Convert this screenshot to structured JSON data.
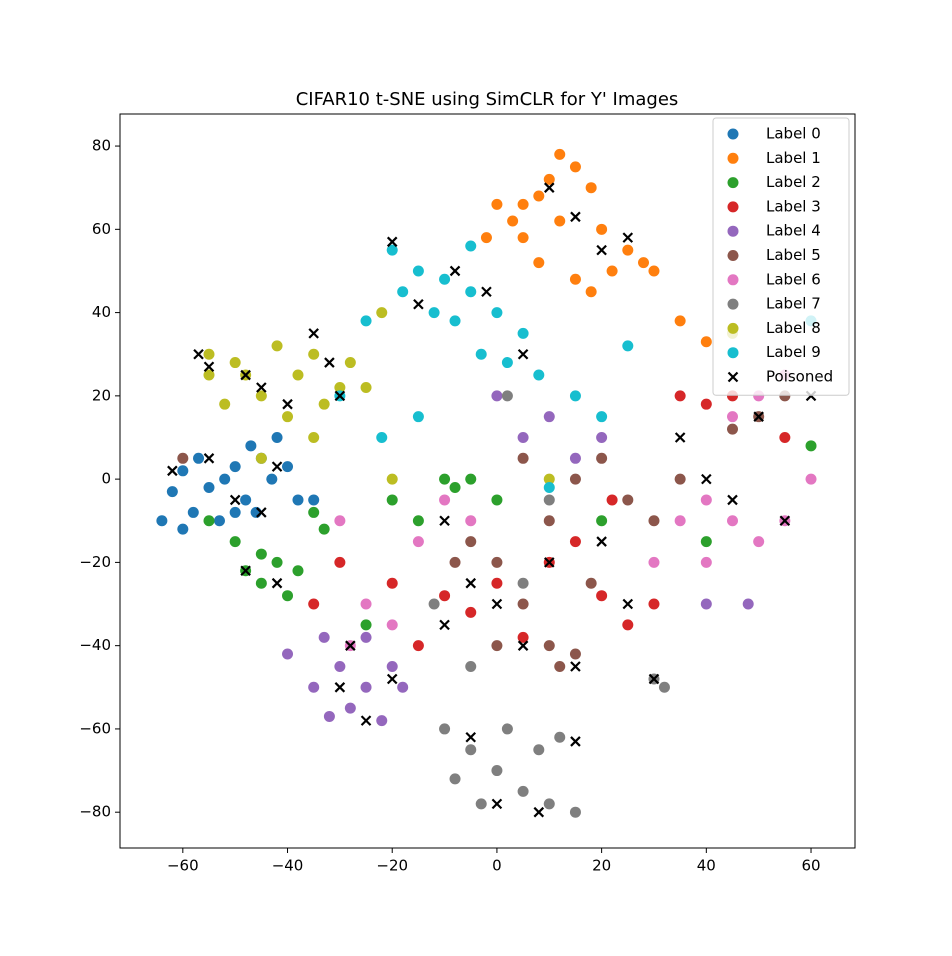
{
  "chart_data": {
    "type": "scatter",
    "title": "CIFAR10 t-SNE using SimCLR for Y' Images",
    "xlim": [
      -72,
      68.4
    ],
    "ylim": [
      -88.6,
      87.7
    ],
    "xticks": [
      {
        "value": -60,
        "label": "−60"
      },
      {
        "value": -40,
        "label": "−40"
      },
      {
        "value": -20,
        "label": "−20"
      },
      0,
      20,
      40,
      60
    ],
    "yticks": [
      {
        "value": -80,
        "label": "−80"
      },
      {
        "value": -60,
        "label": "−60"
      },
      {
        "value": -40,
        "label": "−40"
      },
      {
        "value": -20,
        "label": "−20"
      },
      0,
      20,
      40,
      60,
      80
    ],
    "legend": "upper right",
    "series": [
      {
        "name": "Label 0",
        "color": "#1f77b4",
        "x": [
          -62,
          -60,
          -57,
          -55,
          -52,
          -50,
          -48,
          -45,
          -43,
          -40,
          -58,
          -53,
          -46,
          -38,
          -35,
          -64,
          -60,
          -47,
          -42,
          -50
        ],
        "y": [
          -3,
          2,
          5,
          -2,
          0,
          3,
          -5,
          5,
          0,
          3,
          -8,
          -10,
          -8,
          -5,
          -5,
          -10,
          -12,
          8,
          10,
          -8
        ]
      },
      {
        "name": "Label 1",
        "color": "#ff7f0e",
        "x": [
          12,
          15,
          10,
          18,
          8,
          5,
          0,
          3,
          12,
          20,
          25,
          28,
          30,
          22,
          15,
          5,
          -2,
          8,
          18,
          35,
          40
        ],
        "y": [
          78,
          75,
          72,
          70,
          68,
          66,
          66,
          62,
          62,
          60,
          55,
          52,
          50,
          50,
          48,
          58,
          58,
          52,
          45,
          38,
          33
        ]
      },
      {
        "name": "Label 2",
        "color": "#2ca02c",
        "x": [
          -48,
          -45,
          -42,
          -50,
          -40,
          -55,
          -35,
          -33,
          -20,
          -10,
          -8,
          -5,
          0,
          -15,
          -45,
          -38,
          20,
          40,
          -25,
          60
        ],
        "y": [
          -22,
          -25,
          -20,
          -15,
          -28,
          -10,
          -8,
          -12,
          -5,
          0,
          -2,
          0,
          -5,
          -10,
          -18,
          -22,
          -10,
          -15,
          -35,
          8
        ]
      },
      {
        "name": "Label 3",
        "color": "#d62728",
        "x": [
          -20,
          -10,
          0,
          10,
          25,
          30,
          20,
          -15,
          5,
          -5,
          15,
          35,
          40,
          55,
          -30,
          22,
          45,
          -35
        ],
        "y": [
          -25,
          -28,
          -25,
          -20,
          -35,
          -30,
          -28,
          -40,
          -38,
          -32,
          -15,
          20,
          18,
          10,
          -20,
          -5,
          20,
          -30
        ]
      },
      {
        "name": "Label 4",
        "color": "#9467bd",
        "x": [
          -30,
          -25,
          -35,
          -28,
          -22,
          -40,
          -20,
          -33,
          -25,
          10,
          15,
          20,
          5,
          40,
          48,
          -18,
          -32,
          0
        ],
        "y": [
          -45,
          -50,
          -50,
          -55,
          -58,
          -42,
          -45,
          -38,
          -38,
          15,
          5,
          10,
          10,
          -30,
          -30,
          -50,
          -57,
          20
        ]
      },
      {
        "name": "Label 5",
        "color": "#8c564b",
        "x": [
          0,
          5,
          10,
          15,
          -5,
          10,
          15,
          20,
          25,
          30,
          35,
          45,
          50,
          55,
          0,
          12,
          -8,
          18,
          5,
          -60
        ],
        "y": [
          -20,
          -30,
          -40,
          -42,
          -15,
          -10,
          0,
          5,
          -5,
          -10,
          0,
          12,
          15,
          20,
          -40,
          -45,
          -20,
          -25,
          5,
          5
        ]
      },
      {
        "name": "Label 6",
        "color": "#e377c2",
        "x": [
          -25,
          -28,
          -20,
          -30,
          -15,
          -10,
          35,
          40,
          45,
          50,
          55,
          45,
          50,
          55,
          40,
          30,
          -5,
          60
        ],
        "y": [
          -30,
          -40,
          -35,
          -10,
          -15,
          -5,
          -10,
          -5,
          -10,
          -15,
          -10,
          15,
          20,
          25,
          -20,
          -20,
          -10,
          0
        ]
      },
      {
        "name": "Label 7",
        "color": "#7f7f7f",
        "x": [
          -10,
          -5,
          0,
          5,
          10,
          15,
          2,
          -8,
          -3,
          8,
          12,
          30,
          32,
          -5,
          5,
          -12,
          10,
          2
        ],
        "y": [
          -60,
          -65,
          -70,
          -75,
          -78,
          -80,
          -60,
          -72,
          -78,
          -65,
          -62,
          -48,
          -50,
          -45,
          -25,
          -30,
          -5,
          20
        ]
      },
      {
        "name": "Label 8",
        "color": "#bcbd22",
        "x": [
          -55,
          -50,
          -48,
          -45,
          -42,
          -38,
          -35,
          -30,
          -33,
          -28,
          -52,
          -40,
          -45,
          -35,
          -25,
          -55,
          -22,
          -20,
          45,
          10
        ],
        "y": [
          30,
          28,
          25,
          20,
          32,
          25,
          30,
          22,
          18,
          28,
          18,
          15,
          5,
          10,
          22,
          25,
          40,
          0,
          35,
          0
        ]
      },
      {
        "name": "Label 9",
        "color": "#17becf",
        "x": [
          -20,
          -15,
          -10,
          -5,
          0,
          5,
          -18,
          -12,
          -8,
          -3,
          2,
          8,
          15,
          20,
          -25,
          -30,
          -22,
          -15,
          -5,
          25,
          60,
          10
        ],
        "y": [
          55,
          50,
          48,
          45,
          40,
          35,
          45,
          40,
          38,
          30,
          28,
          25,
          20,
          15,
          38,
          20,
          10,
          15,
          56,
          32,
          38,
          -2
        ]
      },
      {
        "name": "Poisoned",
        "color": "#000000",
        "marker": "x",
        "x": [
          -57,
          -55,
          -48,
          -45,
          -40,
          -35,
          -32,
          -30,
          -55,
          -50,
          -45,
          -42,
          -62,
          -48,
          -42,
          -20,
          -15,
          -8,
          -2,
          5,
          10,
          15,
          20,
          25,
          -28,
          -30,
          -25,
          -20,
          -10,
          -5,
          0,
          5,
          15,
          10,
          20,
          25,
          -5,
          0,
          8,
          15,
          30,
          40,
          45,
          55,
          50,
          60,
          35,
          -10
        ],
        "y": [
          30,
          27,
          25,
          22,
          18,
          35,
          28,
          20,
          5,
          -5,
          -8,
          3,
          2,
          -22,
          -25,
          57,
          42,
          50,
          45,
          30,
          70,
          63,
          55,
          58,
          -40,
          -50,
          -58,
          -48,
          -35,
          -25,
          -30,
          -40,
          -45,
          -20,
          -15,
          -30,
          -62,
          -78,
          -80,
          -63,
          -48,
          0,
          -5,
          -10,
          15,
          20,
          10,
          -10
        ]
      }
    ]
  }
}
